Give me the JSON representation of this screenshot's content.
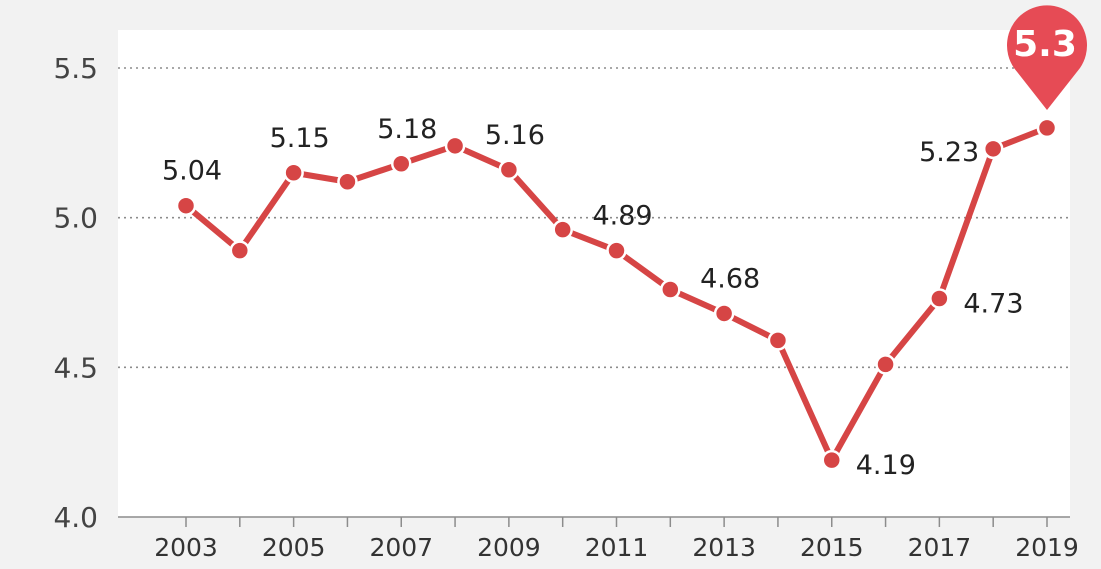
{
  "chart_data": {
    "type": "line",
    "title": "",
    "xlabel": "",
    "ylabel": "",
    "x": [
      2003,
      2004,
      2005,
      2006,
      2007,
      2008,
      2009,
      2010,
      2011,
      2012,
      2013,
      2014,
      2015,
      2016,
      2017,
      2018,
      2019
    ],
    "values": [
      5.04,
      4.89,
      5.15,
      5.12,
      5.18,
      5.24,
      5.16,
      4.96,
      4.89,
      4.76,
      4.68,
      4.59,
      4.19,
      4.51,
      4.73,
      5.23,
      5.3
    ],
    "ylim": [
      4.0,
      5.5
    ],
    "y_ticks": [
      "4.0",
      "4.5",
      "5.0",
      "5.5"
    ],
    "x_ticks": [
      "2003",
      "2005",
      "2007",
      "2009",
      "2011",
      "2013",
      "2015",
      "2017",
      "2019"
    ],
    "data_labels": [
      {
        "year": 2003,
        "text": "5.04",
        "position": "above"
      },
      {
        "year": 2005,
        "text": "5.15",
        "position": "above"
      },
      {
        "year": 2007,
        "text": "5.18",
        "position": "above"
      },
      {
        "year": 2009,
        "text": "5.16",
        "position": "above"
      },
      {
        "year": 2011,
        "text": "4.89",
        "position": "above"
      },
      {
        "year": 2013,
        "text": "4.68",
        "position": "above"
      },
      {
        "year": 2015,
        "text": "4.19",
        "position": "right"
      },
      {
        "year": 2017,
        "text": "4.73",
        "position": "right"
      },
      {
        "year": 2018,
        "text": "5.23",
        "position": "left"
      }
    ],
    "highlight": {
      "year": 2019,
      "text": "5.3"
    },
    "grid": true,
    "colors": {
      "line": "#d64545",
      "highlight": "#e64b55",
      "grid": "#8c8c8c",
      "panel": "#f2f2f2"
    }
  }
}
